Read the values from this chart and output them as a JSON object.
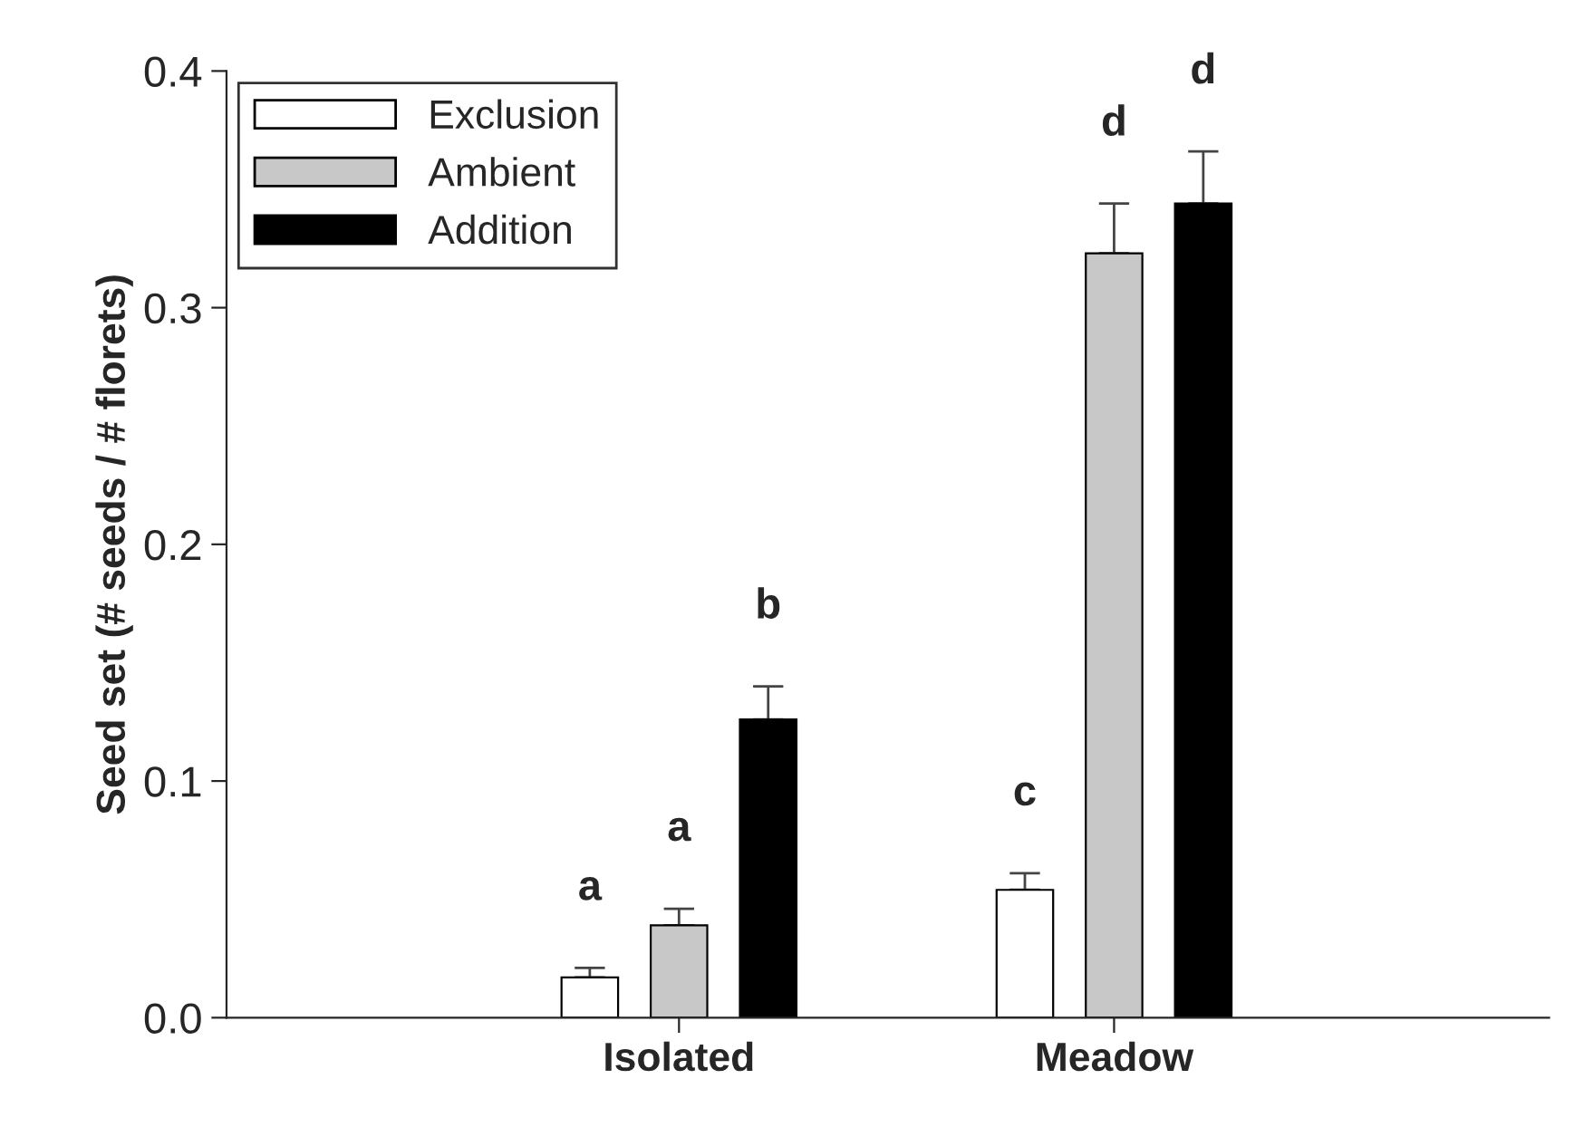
{
  "chart_data": {
    "type": "bar",
    "ylabel": "Seed set (# seeds / # florets)",
    "categories": [
      "Isolated",
      "Meadow"
    ],
    "series": [
      {
        "name": "Exclusion",
        "color": "#ffffff",
        "values": [
          0.017,
          0.054
        ],
        "errors": [
          0.004,
          0.007
        ],
        "value_labels": [
          "a",
          "c"
        ]
      },
      {
        "name": "Ambient",
        "color": "#c8c8c8",
        "values": [
          0.039,
          0.323
        ],
        "errors": [
          0.007,
          0.021
        ],
        "value_labels": [
          "a",
          "d"
        ]
      },
      {
        "name": "Addition",
        "color": "#000000",
        "values": [
          0.126,
          0.344
        ],
        "errors": [
          0.014,
          0.022
        ],
        "value_labels": [
          "b",
          "d"
        ]
      }
    ],
    "ylim": [
      0,
      0.4
    ],
    "yticks": [
      {
        "value": 0,
        "label": "0.0"
      },
      0.1,
      0.2,
      0.3,
      0.4
    ],
    "legend": "top left",
    "grid": false
  }
}
